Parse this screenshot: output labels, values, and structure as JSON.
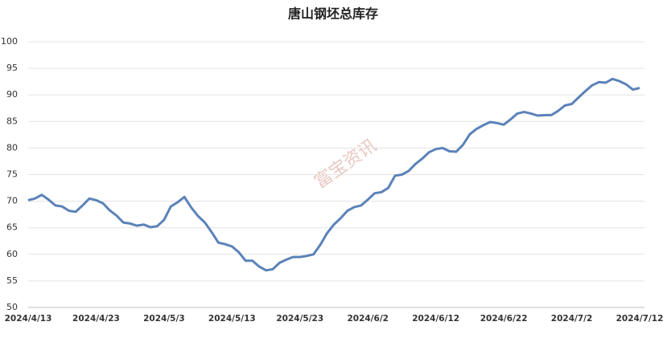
{
  "chart_data": {
    "type": "line",
    "title": "唐山钢坯总库存",
    "watermark": "富宝资讯",
    "categories": [
      "2024/4/13",
      null,
      null,
      null,
      null,
      null,
      null,
      null,
      null,
      null,
      "2024/4/23",
      null,
      null,
      null,
      null,
      null,
      null,
      null,
      null,
      null,
      "2024/5/3",
      null,
      null,
      null,
      null,
      null,
      null,
      null,
      null,
      null,
      "2024/5/13",
      null,
      null,
      null,
      null,
      null,
      null,
      null,
      null,
      null,
      "2024/5/23",
      null,
      null,
      null,
      null,
      null,
      null,
      null,
      null,
      null,
      "2024/6/2",
      null,
      null,
      null,
      null,
      null,
      null,
      null,
      null,
      null,
      "2024/6/12",
      null,
      null,
      null,
      null,
      null,
      null,
      null,
      null,
      null,
      "2024/6/22",
      null,
      null,
      null,
      null,
      null,
      null,
      null,
      null,
      null,
      "2024/7/2",
      null,
      null,
      null,
      null,
      null,
      null,
      null,
      null,
      null,
      "2024/7/12"
    ],
    "series": [
      {
        "name": "唐山钢坯总库存",
        "color": "#5b82b8",
        "values": [
          70.2,
          70.5,
          71.2,
          70.3,
          69.2,
          69.0,
          68.2,
          68.0,
          69.2,
          70.5,
          70.2,
          69.6,
          68.3,
          67.3,
          66.0,
          65.8,
          65.4,
          65.6,
          65.1,
          65.3,
          66.5,
          69.0,
          69.8,
          70.8,
          68.8,
          67.2,
          66.0,
          64.2,
          62.2,
          61.9,
          61.5,
          60.4,
          58.8,
          58.8,
          57.7,
          57.0,
          57.2,
          58.4,
          59.0,
          59.5,
          59.5,
          59.7,
          60.0,
          61.8,
          64.0,
          65.6,
          66.8,
          68.2,
          68.9,
          69.2,
          70.3,
          71.5,
          71.7,
          72.5,
          74.8,
          75.0,
          75.7,
          77.0,
          78.0,
          79.2,
          79.8,
          80.0,
          79.4,
          79.3,
          80.6,
          82.6,
          83.6,
          84.3,
          84.9,
          84.7,
          84.4,
          85.4,
          86.5,
          86.8,
          86.5,
          86.1,
          86.2,
          86.2,
          87.0,
          88.0,
          88.3,
          89.5,
          90.7,
          91.8,
          92.4,
          92.3,
          93.0,
          92.6,
          92.0,
          91.0,
          91.3
        ]
      }
    ],
    "ylim": [
      50,
      100
    ],
    "yticks": [
      50,
      55,
      60,
      65,
      70,
      75,
      80,
      85,
      90,
      95,
      100
    ],
    "grid": true
  }
}
